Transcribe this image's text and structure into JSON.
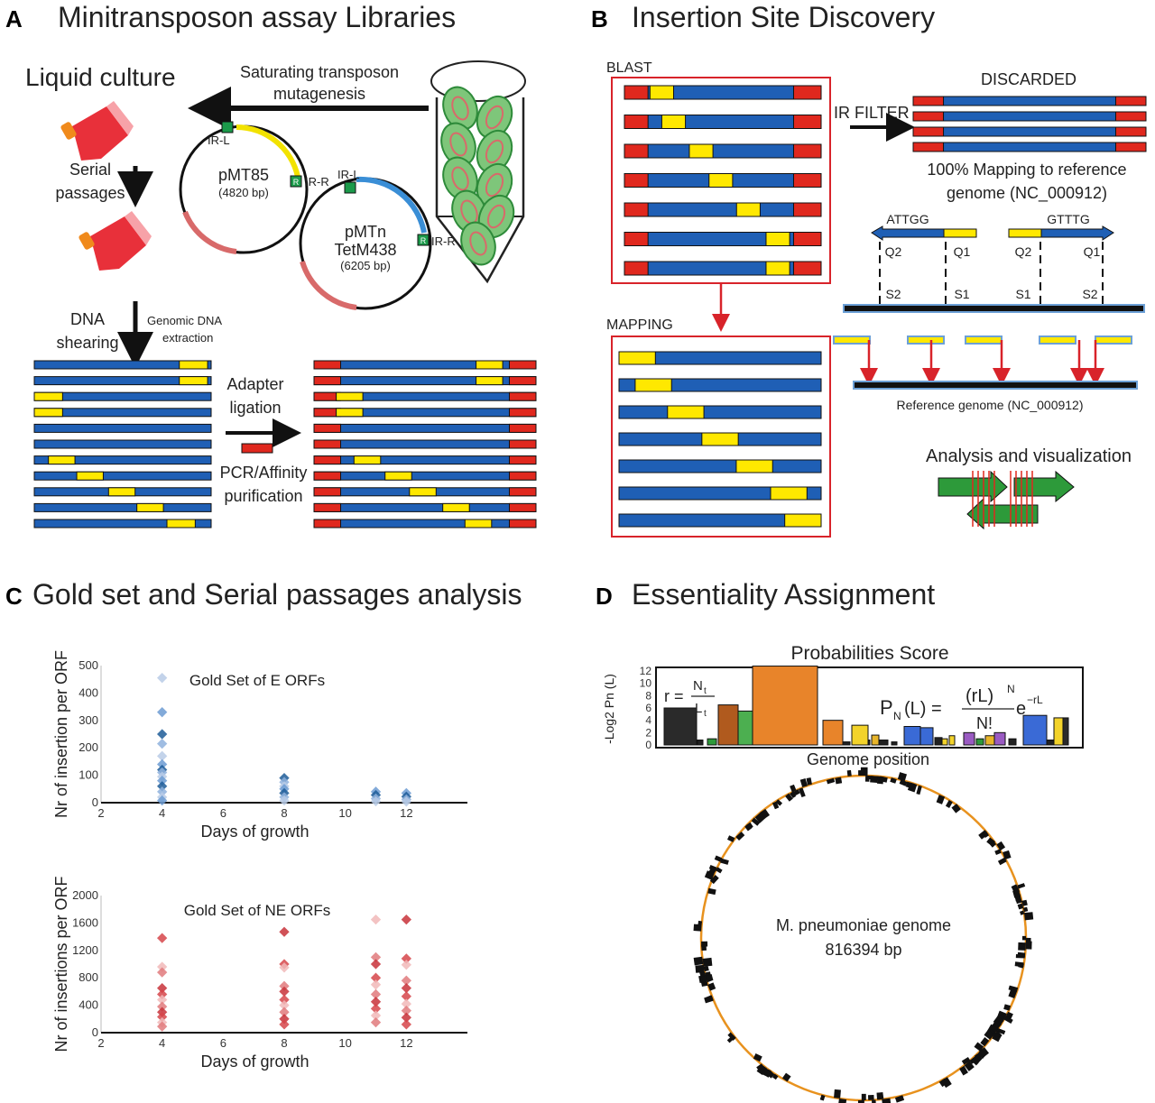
{
  "panels": {
    "a": {
      "letter": "A",
      "title": "Minitransposon assay Libraries",
      "liquid_culture": "Liquid culture",
      "saturating_1": "Saturating transposon",
      "saturating_2": "mutagenesis",
      "serial_1": "Serial",
      "serial_2": "passages",
      "plasmid1_name": "pMT85",
      "plasmid1_size": "(4820 bp)",
      "plasmid2_name_1": "pMTn",
      "plasmid2_name_2": "TetM438",
      "plasmid2_size": "(6205 bp)",
      "ir_l": "IR-L",
      "ir_r": "IR-R",
      "r_mark": "R",
      "dna_1": "DNA",
      "dna_2": "shearing",
      "genomic_1": "Genomic DNA",
      "genomic_2": "extraction",
      "adapter_1": "Adapter",
      "adapter_2": "ligation",
      "pcr_1": "PCR/Affinity",
      "pcr_2": "purification"
    },
    "b": {
      "letter": "B",
      "title": "Insertion Site Discovery",
      "blast": "BLAST",
      "discarded": "DISCARDED",
      "ir_filter": "IR FILTER",
      "mapping_100_1": "100% Mapping to reference",
      "mapping_100_2": "genome (NC_000912)",
      "attgg": "ATTGG",
      "gtttg": "GTTTG",
      "q2": "Q2",
      "q1": "Q1",
      "s1": "S1",
      "s2": "S2",
      "mapping": "MAPPING",
      "reference": "Reference genome (NC_000912)",
      "analysis": "Analysis and visualization"
    },
    "c": {
      "letter": "C",
      "title": "Gold set and Serial passages analysis"
    },
    "d": {
      "letter": "D",
      "title": "Essentiality Assignment",
      "prob_title": "Probabilities Score",
      "ylabel": "-Log2 Pn (L)",
      "xlabel": "Genome position",
      "yticks": [
        "0",
        "2",
        "4",
        "6",
        "8",
        "10",
        "12"
      ],
      "formula_r": "r =",
      "formula_nt": "N",
      "formula_lt": "L",
      "formula_sub": "t",
      "formula_pn": "P",
      "formula_pn_sub": "N",
      "formula_lhs_arg": "(L) =",
      "formula_num": "(rL)",
      "formula_num_exp": "N",
      "formula_den": "N!",
      "formula_e": "e",
      "formula_e_exp": "−rL",
      "genome_1": "M. pneumoniae genome",
      "genome_2": "816394 bp"
    }
  },
  "colors": {
    "blue": "#1f5fb5",
    "yellow": "#ffe800",
    "red": "#e0281e",
    "box_red": "#d8232a",
    "green": "#2d9a3a",
    "orange": "#e8921e",
    "e_series": "#6c9bd2",
    "ne_series": "#d6454a"
  },
  "chart_data": [
    {
      "type": "scatter",
      "title": "Gold Set of E ORFs",
      "xlabel": "Days of growth",
      "ylabel": "Nr of insertion per ORF",
      "xlim": [
        2,
        14
      ],
      "ylim": [
        0,
        500
      ],
      "xticks": [
        2,
        4,
        6,
        8,
        10,
        12
      ],
      "yticks": [
        0,
        100,
        200,
        300,
        400,
        500
      ],
      "points": [
        {
          "x": 4,
          "y": 455
        },
        {
          "x": 4,
          "y": 330
        },
        {
          "x": 4,
          "y": 250
        },
        {
          "x": 4,
          "y": 215
        },
        {
          "x": 4,
          "y": 170
        },
        {
          "x": 4,
          "y": 140
        },
        {
          "x": 4,
          "y": 120
        },
        {
          "x": 4,
          "y": 110
        },
        {
          "x": 4,
          "y": 95
        },
        {
          "x": 4,
          "y": 80
        },
        {
          "x": 4,
          "y": 60
        },
        {
          "x": 4,
          "y": 40
        },
        {
          "x": 4,
          "y": 20
        },
        {
          "x": 4,
          "y": 8
        },
        {
          "x": 8,
          "y": 90
        },
        {
          "x": 8,
          "y": 75
        },
        {
          "x": 8,
          "y": 60
        },
        {
          "x": 8,
          "y": 50
        },
        {
          "x": 8,
          "y": 35
        },
        {
          "x": 8,
          "y": 20
        },
        {
          "x": 8,
          "y": 8
        },
        {
          "x": 11,
          "y": 40
        },
        {
          "x": 11,
          "y": 28
        },
        {
          "x": 11,
          "y": 15
        },
        {
          "x": 11,
          "y": 5
        },
        {
          "x": 12,
          "y": 35
        },
        {
          "x": 12,
          "y": 22
        },
        {
          "x": 12,
          "y": 12
        },
        {
          "x": 12,
          "y": 4
        }
      ]
    },
    {
      "type": "scatter",
      "title": "Gold Set of NE ORFs",
      "xlabel": "Days of growth",
      "ylabel": "Nr of insertions per ORF",
      "xlim": [
        2,
        14
      ],
      "ylim": [
        0,
        2000
      ],
      "xticks": [
        2,
        4,
        6,
        8,
        10,
        12
      ],
      "yticks": [
        0,
        400,
        800,
        1200,
        1600,
        2000
      ],
      "points": [
        {
          "x": 4,
          "y": 1380
        },
        {
          "x": 4,
          "y": 960
        },
        {
          "x": 4,
          "y": 880
        },
        {
          "x": 4,
          "y": 650
        },
        {
          "x": 4,
          "y": 560
        },
        {
          "x": 4,
          "y": 480
        },
        {
          "x": 4,
          "y": 380
        },
        {
          "x": 4,
          "y": 300
        },
        {
          "x": 4,
          "y": 230
        },
        {
          "x": 4,
          "y": 150
        },
        {
          "x": 4,
          "y": 90
        },
        {
          "x": 8,
          "y": 1470
        },
        {
          "x": 8,
          "y": 1000
        },
        {
          "x": 8,
          "y": 950
        },
        {
          "x": 8,
          "y": 680
        },
        {
          "x": 8,
          "y": 600
        },
        {
          "x": 8,
          "y": 480
        },
        {
          "x": 8,
          "y": 400
        },
        {
          "x": 8,
          "y": 300
        },
        {
          "x": 8,
          "y": 200
        },
        {
          "x": 8,
          "y": 120
        },
        {
          "x": 11,
          "y": 1650
        },
        {
          "x": 11,
          "y": 1100
        },
        {
          "x": 11,
          "y": 1000
        },
        {
          "x": 11,
          "y": 800
        },
        {
          "x": 11,
          "y": 700
        },
        {
          "x": 11,
          "y": 560
        },
        {
          "x": 11,
          "y": 450
        },
        {
          "x": 11,
          "y": 350
        },
        {
          "x": 11,
          "y": 250
        },
        {
          "x": 11,
          "y": 150
        },
        {
          "x": 12,
          "y": 1650
        },
        {
          "x": 12,
          "y": 1080
        },
        {
          "x": 12,
          "y": 990
        },
        {
          "x": 12,
          "y": 760
        },
        {
          "x": 12,
          "y": 650
        },
        {
          "x": 12,
          "y": 530
        },
        {
          "x": 12,
          "y": 420
        },
        {
          "x": 12,
          "y": 320
        },
        {
          "x": 12,
          "y": 220
        },
        {
          "x": 12,
          "y": 120
        }
      ]
    }
  ]
}
